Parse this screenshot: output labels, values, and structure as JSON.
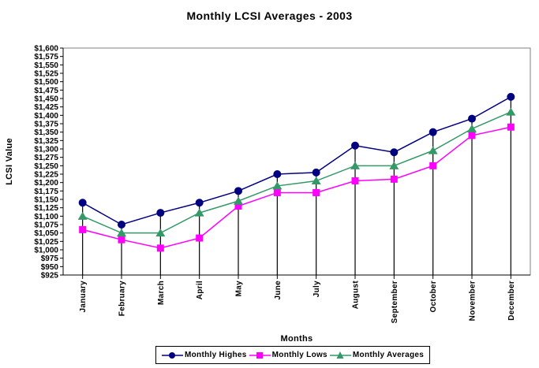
{
  "chart_data": {
    "type": "line",
    "title": "Monthly LCSI Averages - 2003",
    "xlabel": "Months",
    "ylabel": "LCSI Value",
    "categories": [
      "January",
      "February",
      "March",
      "April",
      "May",
      "June",
      "July",
      "August",
      "September",
      "October",
      "November",
      "December"
    ],
    "series": [
      {
        "name": "Monthly Highes",
        "marker": "circle",
        "color": "#000080",
        "values": [
          1140,
          1075,
          1110,
          1140,
          1175,
          1225,
          1230,
          1310,
          1290,
          1350,
          1390,
          1455
        ]
      },
      {
        "name": "Monthly Lows",
        "marker": "square",
        "color": "#FF00FF",
        "values": [
          1060,
          1030,
          1005,
          1035,
          1130,
          1170,
          1170,
          1205,
          1210,
          1250,
          1340,
          1365
        ]
      },
      {
        "name": "Monthly Averages",
        "marker": "triangle",
        "color": "#339966",
        "values": [
          1100,
          1050,
          1050,
          1110,
          1145,
          1190,
          1205,
          1250,
          1250,
          1295,
          1360,
          1410
        ]
      }
    ],
    "ylim": [
      925,
      1600
    ],
    "ytick_step": 25,
    "ytick_prefix": "$",
    "grid": false,
    "drop_lines": true,
    "legend_position": "bottom",
    "plot_border_color": "#808080",
    "axis_color": "#000000",
    "drop_line_color": "#000000",
    "background_color": "#FFFFFF"
  }
}
